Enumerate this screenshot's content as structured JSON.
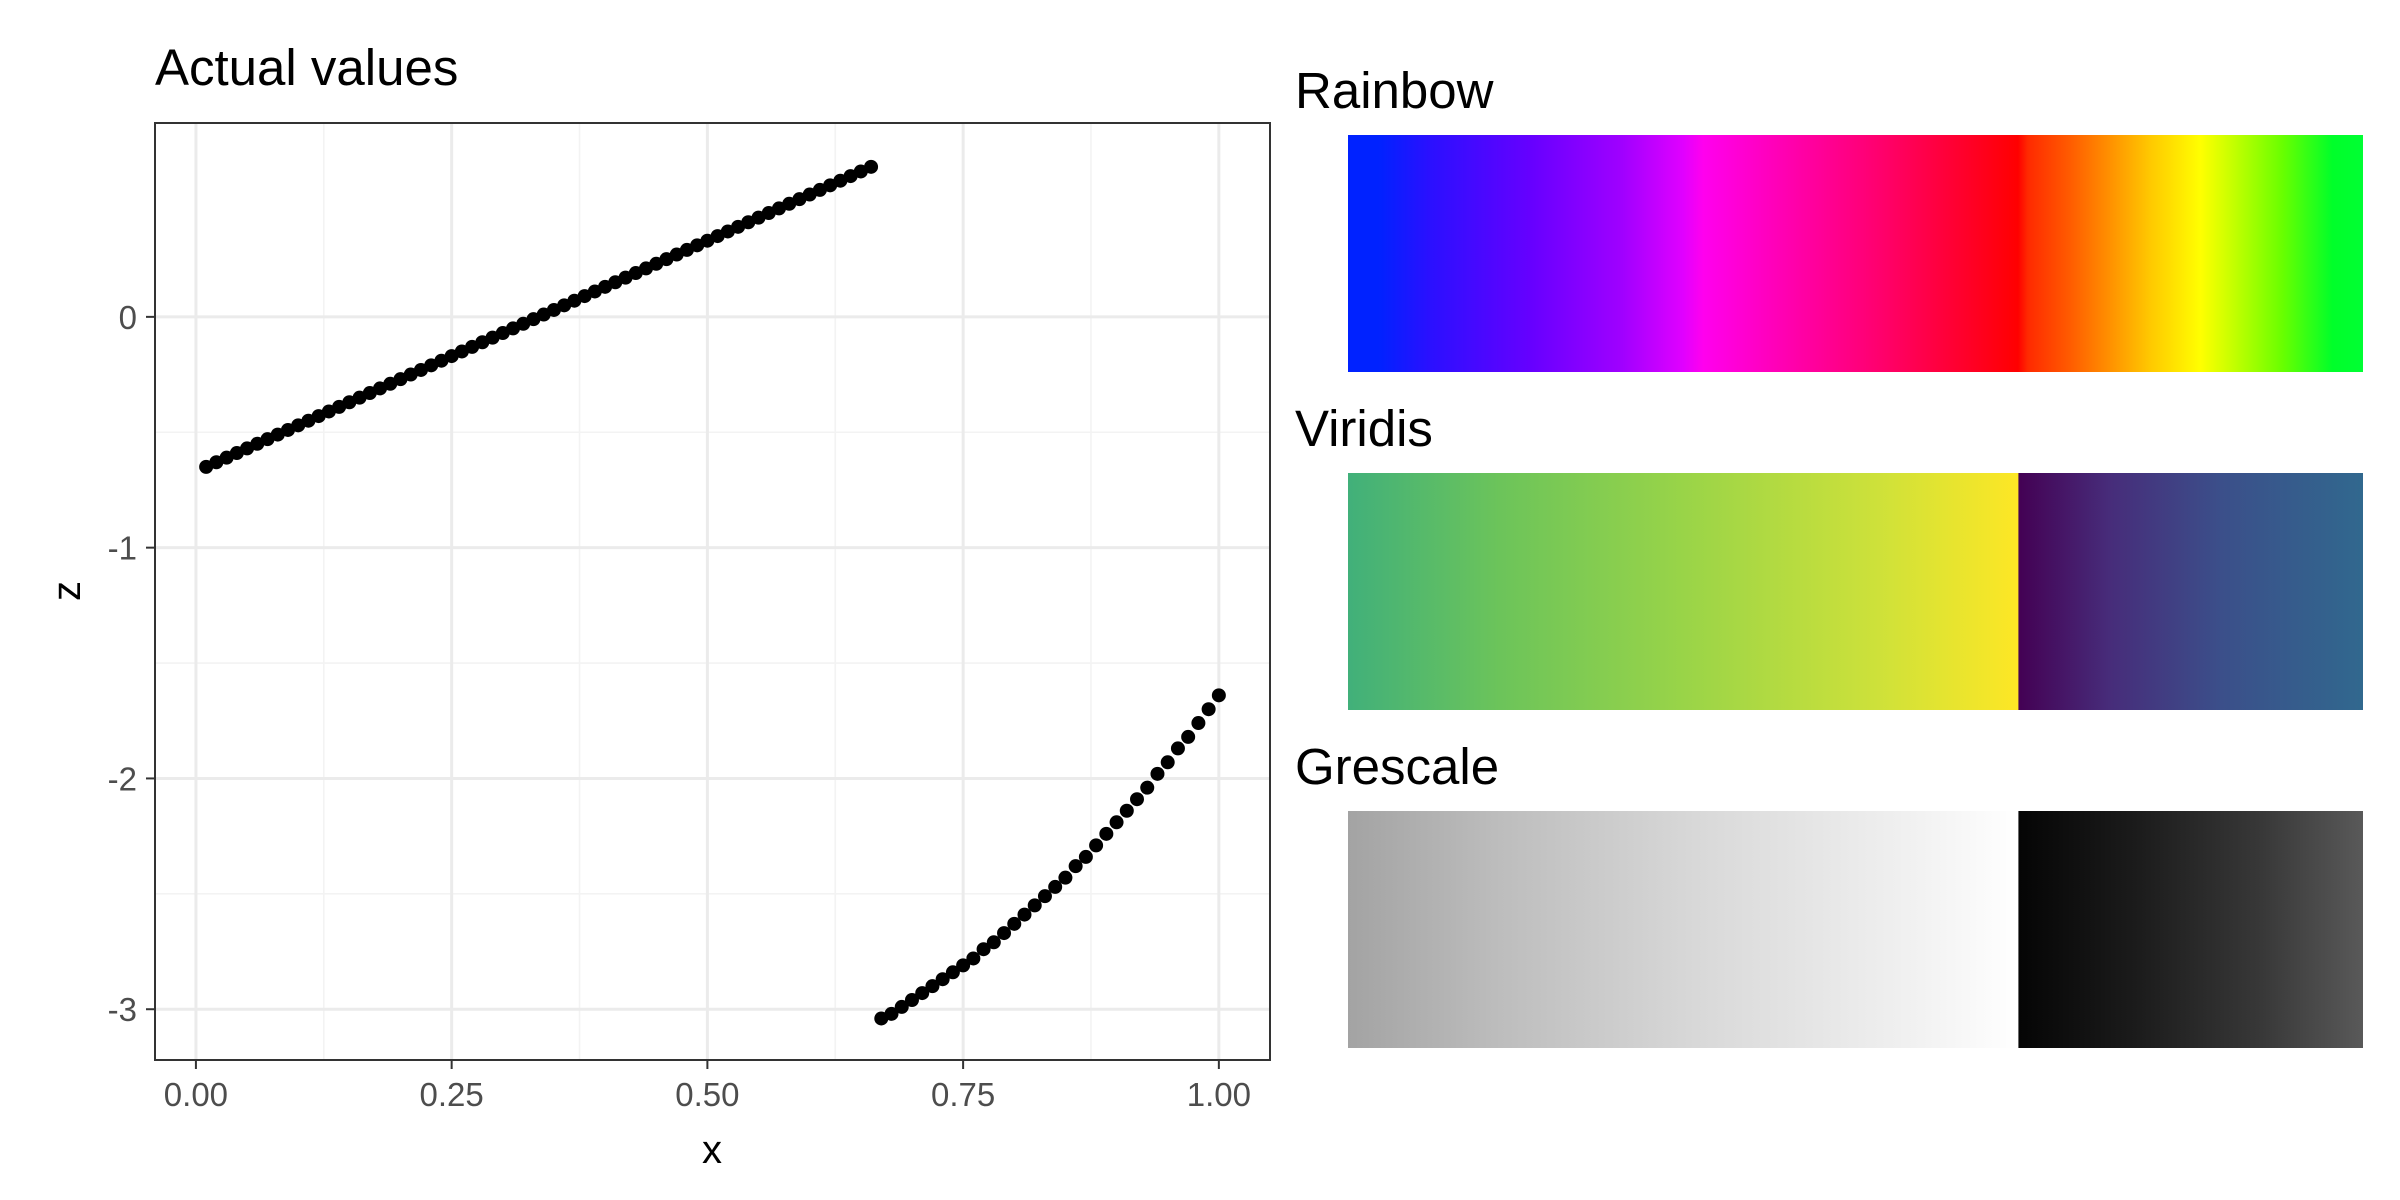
{
  "chart_data": [
    {
      "type": "scatter",
      "title": "Actual values",
      "xlabel": "x",
      "ylabel": "z",
      "xlim": [
        -0.04,
        1.05
      ],
      "ylim": [
        -3.22,
        0.84
      ],
      "xticks": [
        0.0,
        0.25,
        0.5,
        0.75,
        1.0
      ],
      "xtick_labels": [
        "0.00",
        "0.25",
        "0.50",
        "0.75",
        "1.00"
      ],
      "yticks": [
        -3,
        -2,
        -1,
        0
      ],
      "ytick_labels": [
        "-3",
        "-2",
        "-1",
        "0"
      ],
      "grid": true,
      "point_color": "#000000",
      "series": [
        {
          "x": [
            0.01,
            0.02,
            0.03,
            0.04,
            0.05,
            0.06,
            0.07,
            0.08,
            0.09,
            0.1,
            0.11,
            0.12,
            0.13,
            0.14,
            0.15,
            0.16,
            0.17,
            0.18,
            0.19,
            0.2,
            0.21,
            0.22,
            0.23,
            0.24,
            0.25,
            0.26,
            0.27,
            0.28,
            0.29,
            0.3,
            0.31,
            0.32,
            0.33,
            0.34,
            0.35,
            0.36,
            0.37,
            0.38,
            0.39,
            0.4,
            0.41,
            0.42,
            0.43,
            0.44,
            0.45,
            0.46,
            0.47,
            0.48,
            0.49,
            0.5,
            0.51,
            0.52,
            0.53,
            0.54,
            0.55,
            0.56,
            0.57,
            0.58,
            0.59,
            0.6,
            0.61,
            0.62,
            0.63,
            0.64,
            0.65,
            0.66
          ],
          "y": [
            -0.65,
            -0.63,
            -0.61,
            -0.59,
            -0.57,
            -0.55,
            -0.53,
            -0.51,
            -0.49,
            -0.47,
            -0.45,
            -0.43,
            -0.41,
            -0.39,
            -0.37,
            -0.35,
            -0.33,
            -0.31,
            -0.29,
            -0.27,
            -0.25,
            -0.23,
            -0.21,
            -0.19,
            -0.17,
            -0.15,
            -0.13,
            -0.11,
            -0.09,
            -0.07,
            -0.05,
            -0.03,
            -0.01,
            0.01,
            0.03,
            0.05,
            0.07,
            0.09,
            0.11,
            0.13,
            0.15,
            0.17,
            0.19,
            0.21,
            0.23,
            0.25,
            0.27,
            0.29,
            0.31,
            0.33,
            0.35,
            0.37,
            0.39,
            0.41,
            0.43,
            0.45,
            0.47,
            0.49,
            0.51,
            0.53,
            0.55,
            0.57,
            0.59,
            0.61,
            0.63,
            0.65
          ]
        },
        {
          "x": [
            0.67,
            0.68,
            0.69,
            0.7,
            0.71,
            0.72,
            0.73,
            0.74,
            0.75,
            0.76,
            0.77,
            0.78,
            0.79,
            0.8,
            0.81,
            0.82,
            0.83,
            0.84,
            0.85,
            0.86,
            0.87,
            0.88,
            0.89,
            0.9,
            0.91,
            0.92,
            0.93,
            0.94,
            0.95,
            0.96,
            0.97,
            0.98,
            0.99,
            1.0
          ],
          "y": [
            -3.04,
            -3.02,
            -2.99,
            -2.96,
            -2.93,
            -2.9,
            -2.87,
            -2.84,
            -2.81,
            -2.78,
            -2.74,
            -2.71,
            -2.67,
            -2.63,
            -2.59,
            -2.55,
            -2.51,
            -2.47,
            -2.43,
            -2.38,
            -2.34,
            -2.29,
            -2.24,
            -2.19,
            -2.14,
            -2.09,
            -2.04,
            -1.98,
            -1.93,
            -1.87,
            -1.82,
            -1.76,
            -1.7,
            -1.64
          ]
        }
      ]
    },
    {
      "type": "heatmap",
      "title": "Rainbow",
      "stops": [
        [
          "#0022ff",
          0.0
        ],
        [
          "#0022ff",
          0.03
        ],
        [
          "#2a10ff",
          0.08
        ],
        [
          "#6600ff",
          0.18
        ],
        [
          "#a000ff",
          0.27
        ],
        [
          "#e000ff",
          0.33
        ],
        [
          "#ff00ee",
          0.35
        ],
        [
          "#ff00aa",
          0.44
        ],
        [
          "#ff0070",
          0.52
        ],
        [
          "#ff0030",
          0.6
        ],
        [
          "#ff0000",
          0.66
        ],
        [
          "#ff2a00",
          0.67
        ],
        [
          "#ff5a00",
          0.71
        ],
        [
          "#ff9000",
          0.75
        ],
        [
          "#ffc800",
          0.79
        ],
        [
          "#ffff00",
          0.84
        ],
        [
          "#c8ff00",
          0.87
        ],
        [
          "#6aff00",
          0.92
        ],
        [
          "#00ff2a",
          0.97
        ],
        [
          "#00ff33",
          1.0
        ]
      ]
    },
    {
      "type": "heatmap",
      "title": "Viridis",
      "stops": [
        [
          "#41b07a",
          0.0
        ],
        [
          "#6cc45a",
          0.15
        ],
        [
          "#99d448",
          0.33
        ],
        [
          "#cde13a",
          0.52
        ],
        [
          "#fde725",
          0.66
        ],
        [
          "#440154",
          0.661
        ],
        [
          "#472c7a",
          0.75
        ],
        [
          "#3b4f8a",
          0.86
        ],
        [
          "#31688e",
          1.0
        ]
      ]
    },
    {
      "type": "heatmap",
      "title": "Grescale",
      "stops": [
        [
          "#a3a3a3",
          0.0
        ],
        [
          "#bdbdbd",
          0.15
        ],
        [
          "#d9d9d9",
          0.35
        ],
        [
          "#f0f0f0",
          0.55
        ],
        [
          "#ffffff",
          0.66
        ],
        [
          "#050505",
          0.661
        ],
        [
          "#1c1c1c",
          0.78
        ],
        [
          "#383838",
          0.9
        ],
        [
          "#595959",
          1.0
        ]
      ]
    }
  ]
}
